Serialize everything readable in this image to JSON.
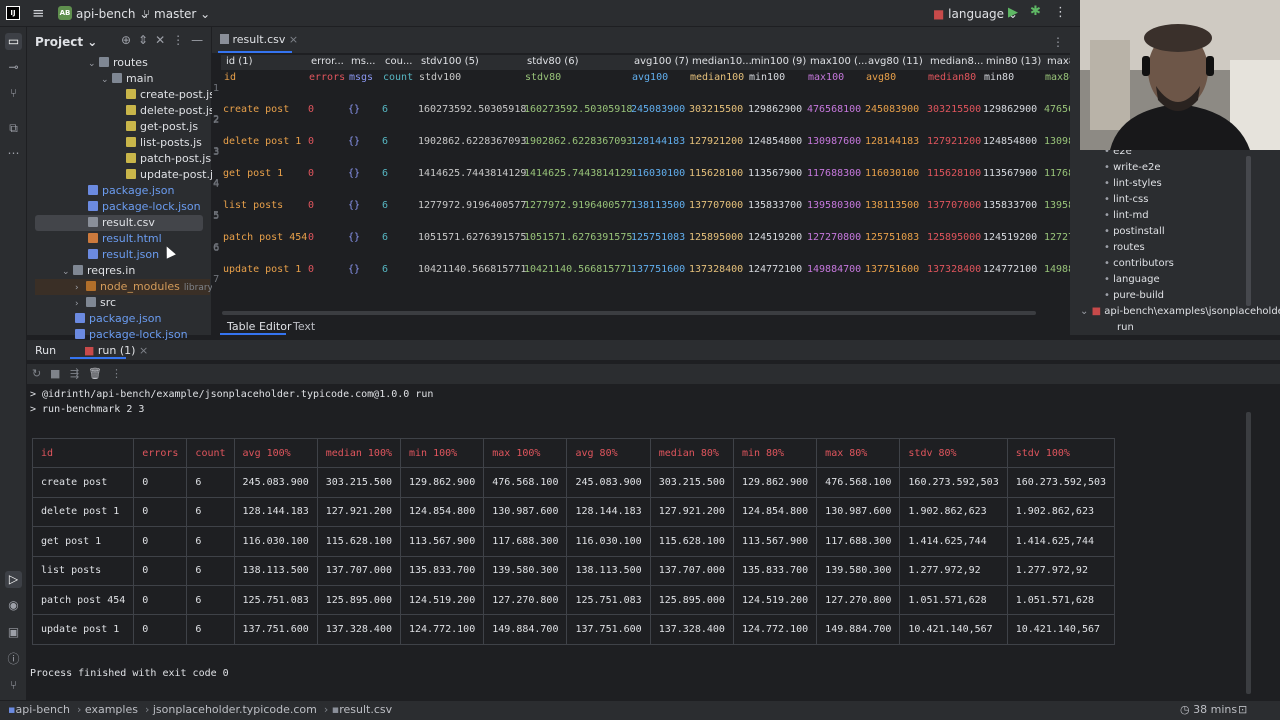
{
  "topbar": {
    "logo": "IJ",
    "project_badge": "AB",
    "project": "api-bench",
    "branch": "master",
    "language": "language",
    "menu_icon": "hamburger-icon",
    "run_icon": "play-icon",
    "debug_icon": "bug-icon",
    "more_icon": "more-vert-icon"
  },
  "left_strip": {
    "icons": [
      "folder-icon",
      "commit-icon",
      "vcs-icon",
      "structure-icon",
      "more-icon",
      "run-tool-icon",
      "services-icon",
      "terminal-icon",
      "problems-icon",
      "git-icon"
    ]
  },
  "project_panel": {
    "title": "Project",
    "tree": [
      {
        "label": "routes",
        "icon": "folder",
        "depth": 2,
        "expanded": true
      },
      {
        "label": "main",
        "icon": "folder",
        "depth": 3,
        "expanded": true
      },
      {
        "label": "create-post.js",
        "icon": "js",
        "depth": 4
      },
      {
        "label": "delete-post.js",
        "icon": "js",
        "depth": 4
      },
      {
        "label": "get-post.js",
        "icon": "js",
        "depth": 4
      },
      {
        "label": "list-posts.js",
        "icon": "js",
        "depth": 4
      },
      {
        "label": "patch-post.js",
        "icon": "js",
        "depth": 4
      },
      {
        "label": "update-post.js",
        "icon": "js",
        "depth": 4
      },
      {
        "label": "package.json",
        "icon": "json",
        "depth": 1
      },
      {
        "label": "package-lock.json",
        "icon": "json",
        "depth": 1
      },
      {
        "label": "result.csv",
        "icon": "csv",
        "depth": 1,
        "selected": true
      },
      {
        "label": "result.html",
        "icon": "html",
        "depth": 1
      },
      {
        "label": "result.json",
        "icon": "json",
        "depth": 1
      },
      {
        "label": "reqres.in",
        "icon": "folder",
        "depth": 0,
        "expanded": true
      },
      {
        "label": "node_modules",
        "icon": "nm",
        "depth": 1,
        "suffix": "library root"
      },
      {
        "label": "src",
        "icon": "folder",
        "depth": 1
      },
      {
        "label": "package.json",
        "icon": "json",
        "depth": 1
      },
      {
        "label": "package-lock.json",
        "icon": "json",
        "depth": 1
      }
    ]
  },
  "editor": {
    "tab": "result.csv",
    "bottom_tabs": [
      "Table Editor",
      "Text"
    ],
    "columns": [
      "id (1)",
      "error...",
      "ms...",
      "cou...",
      "stdv100 (5)",
      "stdv80 (6)",
      "avg100 (7)",
      "median10...",
      "min100 (9)",
      "max100 (...",
      "avg80 (11)",
      "median8...",
      "min80 (13)",
      "max8"
    ],
    "header_row": [
      "id",
      "errors",
      "msgs",
      "count",
      "stdv100",
      "stdv80",
      "avg100",
      "median100",
      "min100",
      "max100",
      "avg80",
      "median80",
      "min80",
      "max80"
    ],
    "rows": [
      [
        "create post",
        "0",
        "{}",
        "6",
        "160273592.50305918",
        "160273592.50305918",
        "245083900",
        "303215500",
        "129862900",
        "476568100",
        "245083900",
        "303215500",
        "129862900",
        "47656"
      ],
      [
        "delete post 1",
        "0",
        "{}",
        "6",
        "1902862.6228367093",
        "1902862.6228367093",
        "128144183",
        "127921200",
        "124854800",
        "130987600",
        "128144183",
        "127921200",
        "124854800",
        "13098"
      ],
      [
        "get post 1",
        "0",
        "{}",
        "6",
        "1414625.7443814129",
        "1414625.7443814129",
        "116030100",
        "115628100",
        "113567900",
        "117688300",
        "116030100",
        "115628100",
        "113567900",
        "11768"
      ],
      [
        "list posts",
        "0",
        "{}",
        "6",
        "1277972.9196400577",
        "1277972.9196400577",
        "138113500",
        "137707000",
        "135833700",
        "139580300",
        "138113500",
        "137707000",
        "135833700",
        "13958"
      ],
      [
        "patch post 454",
        "0",
        "{}",
        "6",
        "1051571.6276391575",
        "1051571.6276391575",
        "125751083",
        "125895000",
        "124519200",
        "127270800",
        "125751083",
        "125895000",
        "124519200",
        "12727"
      ],
      [
        "update post 1",
        "0",
        "{}",
        "6",
        "10421140.566815771",
        "10421140.566815771",
        "137751600",
        "137328400",
        "124772100",
        "149884700",
        "137751600",
        "137328400",
        "124772100",
        "14988"
      ]
    ],
    "col_colors": [
      "#e8a04a",
      "#e0555d",
      "#8a96f0",
      "#56b6c2",
      "#c8c8c8",
      "#98c379",
      "#61afef",
      "#e5c07b",
      "#d7dae0",
      "#c678dd",
      "#e8a04a",
      "#e0555d",
      "#d7dae0",
      "#98c379"
    ]
  },
  "right_panel": {
    "items": [
      "e2e",
      "write-e2e",
      "lint-styles",
      "lint-css",
      "lint-md",
      "postinstall",
      "routes",
      "contributors",
      "language",
      "pure-build"
    ],
    "group": "api-bench\\examples\\jsonplaceholde",
    "sub": "run"
  },
  "run": {
    "label": "Run",
    "tab": "run (1)",
    "lines": [
      "> @idrinth/api-bench/example/jsonplaceholder.typicode.com@1.0.0 run",
      "> run-benchmark 2 3"
    ],
    "table_header": [
      "id",
      "errors",
      "count",
      "avg 100%",
      "median 100%",
      "min 100%",
      "max 100%",
      "avg 80%",
      "median 80%",
      "min 80%",
      "max 80%",
      "stdv 80%",
      "stdv 100%"
    ],
    "table_rows": [
      [
        "create post",
        "0",
        "6",
        "245.083.900",
        "303.215.500",
        "129.862.900",
        "476.568.100",
        "245.083.900",
        "303.215.500",
        "129.862.900",
        "476.568.100",
        "160.273.592,503",
        "160.273.592,503"
      ],
      [
        "delete post 1",
        "0",
        "6",
        "128.144.183",
        "127.921.200",
        "124.854.800",
        "130.987.600",
        "128.144.183",
        "127.921.200",
        "124.854.800",
        "130.987.600",
        "1.902.862,623",
        "1.902.862,623"
      ],
      [
        "get post 1",
        "0",
        "6",
        "116.030.100",
        "115.628.100",
        "113.567.900",
        "117.688.300",
        "116.030.100",
        "115.628.100",
        "113.567.900",
        "117.688.300",
        "1.414.625,744",
        "1.414.625,744"
      ],
      [
        "list posts",
        "0",
        "6",
        "138.113.500",
        "137.707.000",
        "135.833.700",
        "139.580.300",
        "138.113.500",
        "137.707.000",
        "135.833.700",
        "139.580.300",
        "1.277.972,92",
        "1.277.972,92"
      ],
      [
        "patch post 454",
        "0",
        "6",
        "125.751.083",
        "125.895.000",
        "124.519.200",
        "127.270.800",
        "125.751.083",
        "125.895.000",
        "124.519.200",
        "127.270.800",
        "1.051.571,628",
        "1.051.571,628"
      ],
      [
        "update post 1",
        "0",
        "6",
        "137.751.600",
        "137.328.400",
        "124.772.100",
        "149.884.700",
        "137.751.600",
        "137.328.400",
        "124.772.100",
        "149.884.700",
        "10.421.140,567",
        "10.421.140,567"
      ]
    ],
    "exit": "Process finished with exit code 0"
  },
  "statusbar": {
    "crumbs": [
      "api-bench",
      "examples",
      "jsonplaceholder.typicode.com",
      "result.csv"
    ],
    "timer": "38 mins"
  }
}
